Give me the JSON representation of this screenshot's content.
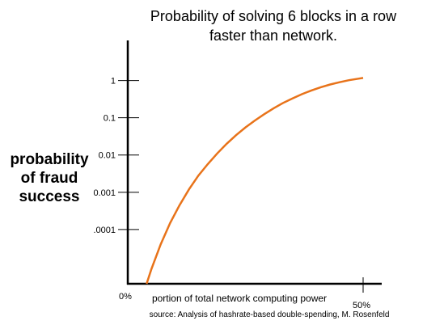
{
  "chart_data": {
    "type": "line",
    "title": [
      "Probability of solving 6 blocks in a row",
      "faster than network."
    ],
    "ylabel": [
      "probability",
      "of fraud",
      "success"
    ],
    "xlabel": "portion of total network computing power",
    "source": "source: Analysis of hashrate-based double-spending, M. Rosenfeld",
    "yscale": "log",
    "y_ticks": [
      {
        "label": "1",
        "value": 1
      },
      {
        "label": "0.1",
        "value": 0.1
      },
      {
        "label": "0.01",
        "value": 0.01
      },
      {
        "label": "0.001",
        "value": 0.001
      },
      {
        "label": ".0001",
        "value": 0.0001
      }
    ],
    "x_ticks": [
      {
        "label": "0%",
        "value": 0
      },
      {
        "label": "50%",
        "value": 50
      }
    ],
    "xlim": [
      0,
      52
    ],
    "ylim": [
      3.5e-06,
      30
    ],
    "grid": false,
    "series": [
      {
        "color": "#e8731a",
        "x": [
          4,
          5,
          7,
          9,
          11,
          13,
          15,
          17,
          19,
          21,
          23,
          25,
          27,
          29,
          31,
          33,
          35,
          37,
          39,
          41,
          43,
          45,
          47,
          49,
          50
        ],
        "y": [
          3.5e-06,
          8.5e-06,
          4e-05,
          0.00015,
          0.00045,
          0.0012,
          0.0028,
          0.0057,
          0.011,
          0.02,
          0.034,
          0.055,
          0.084,
          0.125,
          0.18,
          0.25,
          0.33,
          0.43,
          0.54,
          0.66,
          0.78,
          0.9,
          1.02,
          1.12,
          1.17
        ]
      }
    ]
  }
}
